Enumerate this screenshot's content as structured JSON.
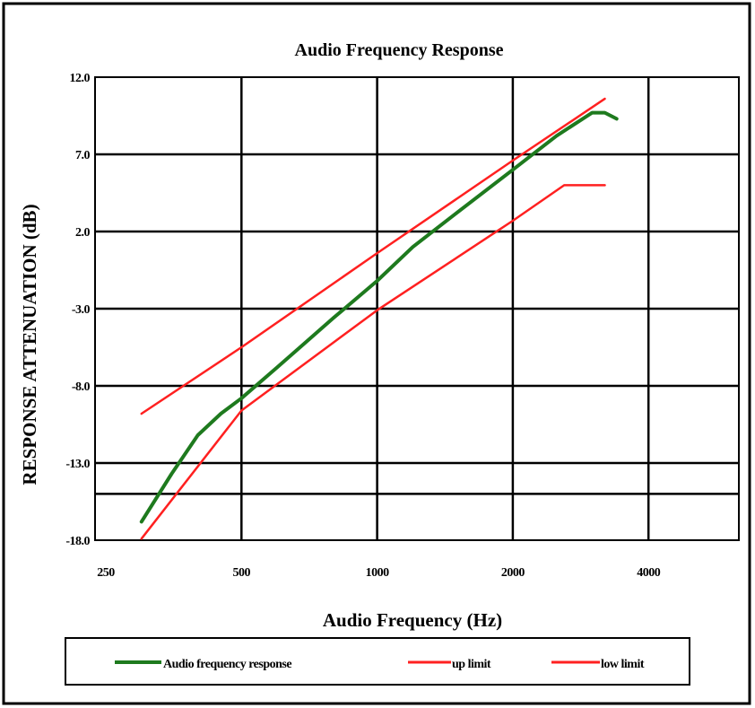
{
  "chart_data": {
    "type": "line",
    "title": "Audio Frequency Response",
    "xlabel": "Audio Frequency (Hz)",
    "ylabel": "RESPONSE ATTENUATION (dB)",
    "x_scale": "log",
    "x_ticks": [
      250,
      500,
      1000,
      2000,
      4000
    ],
    "x_tick_labels": [
      "250",
      "500",
      "1000",
      "2000",
      "4000"
    ],
    "xlim": [
      250,
      8000
    ],
    "y_ticks": [
      -18,
      -13,
      -8,
      -3,
      2,
      7,
      12
    ],
    "y_tick_labels": [
      "-18.0",
      "-13.0",
      "-8.0",
      "-3.0",
      "2.0",
      "7.0",
      "12.0"
    ],
    "ylim": [
      -18,
      12
    ],
    "extra_hlines": [
      -15
    ],
    "grid": true,
    "legend_position": "bottom",
    "series": [
      {
        "name": "Audio frequency response",
        "color": "#1e7a1e",
        "x": [
          300,
          350,
          400,
          450,
          500,
          600,
          800,
          1000,
          1200,
          1500,
          2000,
          2500,
          3000,
          3200,
          3400
        ],
        "y": [
          -16.8,
          -13.7,
          -11.2,
          -9.8,
          -8.8,
          -6.8,
          -3.6,
          -1.2,
          1.0,
          3.2,
          6.0,
          8.2,
          9.7,
          9.7,
          9.3
        ]
      },
      {
        "name": "up limit",
        "color": "#ff2020",
        "x": [
          300,
          500,
          1000,
          2000,
          3200
        ],
        "y": [
          -9.8,
          -5.5,
          0.6,
          6.6,
          10.6
        ]
      },
      {
        "name": "low limit",
        "color": "#ff2020",
        "x": [
          300,
          500,
          1000,
          2000,
          2600,
          3200
        ],
        "y": [
          -17.9,
          -9.6,
          -3.1,
          2.7,
          5.0,
          5.0
        ]
      }
    ]
  }
}
